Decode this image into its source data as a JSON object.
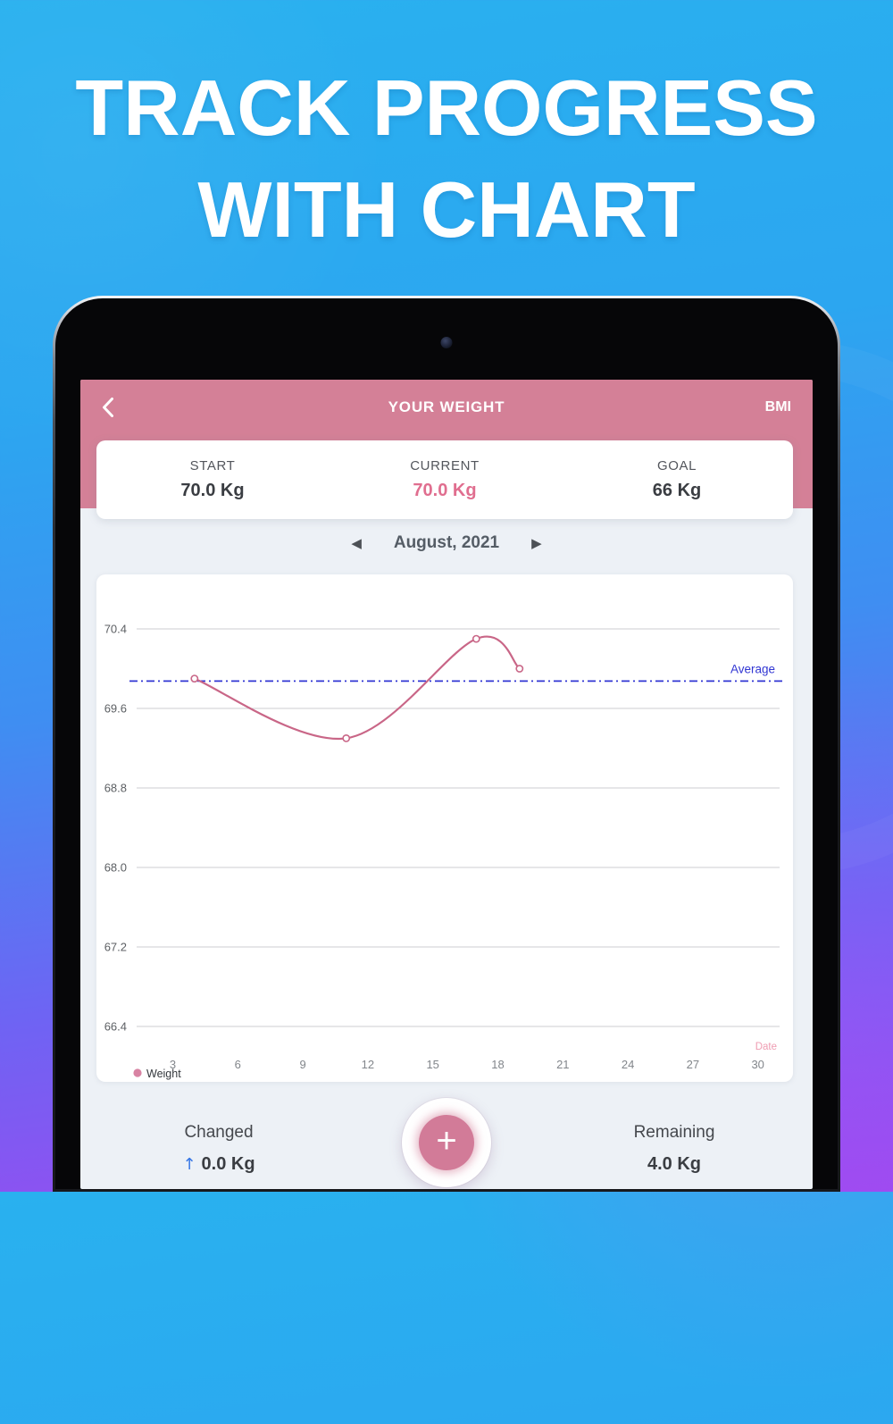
{
  "hero": {
    "title_line1": "TRACK PROGRESS",
    "title_line2": "WITH CHART"
  },
  "app": {
    "header": {
      "title": "YOUR WEIGHT",
      "action": "BMI"
    },
    "stats": [
      {
        "label": "START",
        "value": "70.0 Kg"
      },
      {
        "label": "CURRENT",
        "value": "70.0 Kg"
      },
      {
        "label": "GOAL",
        "value": "66 Kg"
      }
    ],
    "month_nav": {
      "prev_icon": "◀",
      "label": "August, 2021",
      "next_icon": "▶"
    },
    "footer": {
      "changed_label": "Changed",
      "changed_arrow": "↑",
      "changed_value": "0.0 Kg",
      "add_label": "+",
      "remaining_label": "Remaining",
      "remaining_value": "4.0 Kg"
    }
  },
  "chart_data": {
    "type": "line",
    "x": [
      4,
      11,
      17,
      19
    ],
    "series": [
      {
        "name": "Weight",
        "values": [
          69.9,
          69.3,
          70.3,
          70.0
        ]
      }
    ],
    "average_label": "Average",
    "xlabel": "Date",
    "legend": "Weight",
    "y_ticks": [
      70.4,
      69.6,
      68.8,
      68.0,
      67.2,
      66.4
    ],
    "x_ticks": [
      3,
      6,
      9,
      12,
      15,
      18,
      21,
      24,
      27,
      30
    ],
    "x_range": [
      1,
      31
    ],
    "grid": true,
    "legend_position": "bottom-left"
  },
  "colors": {
    "header_pink": "#d48097",
    "accent_pink": "#e06e8f",
    "line_pink": "#c96687",
    "legend_dot": "#d883a3",
    "date_pink": "#ef9cb2",
    "average_blue": "#3136d3",
    "grid_gray": "#cdced1",
    "ytick_gray": "#5c5f63",
    "xtick_gray": "#82868b",
    "legend_text": "#33373c"
  }
}
